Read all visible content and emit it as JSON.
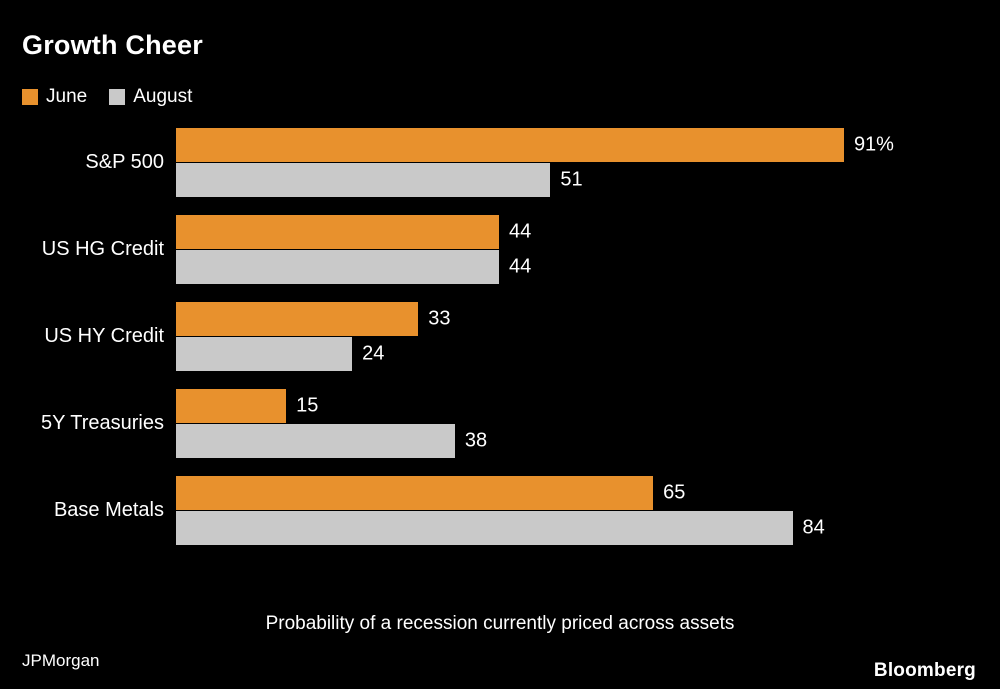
{
  "chart_data": {
    "type": "bar",
    "orientation": "horizontal",
    "title": "Growth Cheer",
    "categories": [
      "S&P 500",
      "US HG Credit",
      "US HY Credit",
      "5Y Treasuries",
      "Base Metals"
    ],
    "series": [
      {
        "name": "June",
        "color": "#E8912D",
        "values": [
          91,
          44,
          33,
          15,
          65
        ]
      },
      {
        "name": "August",
        "color": "#C9C9C9",
        "values": [
          51,
          44,
          24,
          38,
          84
        ]
      }
    ],
    "value_labels": [
      [
        "91%",
        "51"
      ],
      [
        "44",
        "44"
      ],
      [
        "33",
        "24"
      ],
      [
        "15",
        "38"
      ],
      [
        "65",
        "84"
      ]
    ],
    "xlim": [
      0,
      100
    ],
    "grid": "off",
    "legend_position": "top-left",
    "caption": "Probability of a recession currently priced across assets",
    "source": "JPMorgan",
    "brand": "Bloomberg",
    "background_color": "#000000",
    "text_color": "#ffffff"
  }
}
